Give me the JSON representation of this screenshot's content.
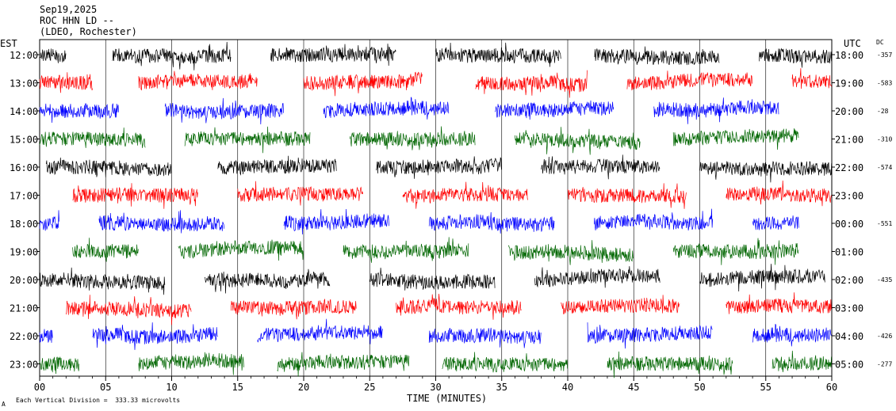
{
  "header": {
    "line1": "Sep19,2025",
    "line2": "ROC HHN LD --",
    "line3": "(LDEO, Rochester)"
  },
  "left_tz": "EST",
  "right_tz": "UTC",
  "dc_label": "DC",
  "xaxis_title": "TIME (MINUTES)",
  "footer_note": "Each Vertical Division =  333.33 microvolts",
  "footer_mark": "A",
  "chart_data": {
    "type": "line",
    "title": "",
    "xlabel": "TIME (MINUTES)",
    "xlim": [
      0,
      60
    ],
    "x_ticks": [
      "00",
      "05",
      "10",
      "15",
      "20",
      "25",
      "30",
      "35",
      "40",
      "45",
      "50",
      "55",
      "60"
    ],
    "grid": "vertical lines every 5 minutes",
    "trace_colors": [
      "#000000",
      "#ff0000",
      "#0000ff",
      "#006600"
    ],
    "rows": [
      {
        "est": "12:00",
        "utc": "18:00",
        "dc": "-357"
      },
      {
        "est": "13:00",
        "utc": "19:00",
        "dc": "-583"
      },
      {
        "est": "14:00",
        "utc": "20:00",
        "dc": "-28"
      },
      {
        "est": "15:00",
        "utc": "21:00",
        "dc": "-310"
      },
      {
        "est": "16:00",
        "utc": "22:00",
        "dc": "-574"
      },
      {
        "est": "17:00",
        "utc": "23:00",
        "dc": ""
      },
      {
        "est": "18:00",
        "utc": "00:00",
        "dc": "-551"
      },
      {
        "est": "19:00",
        "utc": "01:00",
        "dc": ""
      },
      {
        "est": "20:00",
        "utc": "02:00",
        "dc": "-435"
      },
      {
        "est": "21:00",
        "utc": "03:00",
        "dc": ""
      },
      {
        "est": "22:00",
        "utc": "04:00",
        "dc": "-426"
      },
      {
        "est": "23:00",
        "utc": "05:00",
        "dc": "-277"
      }
    ],
    "segments_minutes": [
      [
        [
          0,
          2
        ],
        [
          5.5,
          14.5
        ],
        [
          17.5,
          27
        ],
        [
          30,
          39.5
        ],
        [
          42,
          51.5
        ],
        [
          54.5,
          60
        ]
      ],
      [
        [
          0,
          4
        ],
        [
          7.5,
          16.5
        ],
        [
          20,
          29
        ],
        [
          33,
          41.5
        ],
        [
          44.5,
          54
        ],
        [
          57,
          60
        ]
      ],
      [
        [
          0,
          6
        ],
        [
          9.5,
          18.5
        ],
        [
          21.5,
          31
        ],
        [
          34.5,
          43.5
        ],
        [
          46.5,
          56
        ]
      ],
      [
        [
          0,
          8
        ],
        [
          11,
          20.5
        ],
        [
          23.5,
          33
        ],
        [
          36,
          45.5
        ],
        [
          48,
          57.5
        ]
      ],
      [
        [
          0.5,
          10
        ],
        [
          13.5,
          22.5
        ],
        [
          25.5,
          35
        ],
        [
          38,
          47
        ],
        [
          50,
          60
        ]
      ],
      [
        [
          2.5,
          12
        ],
        [
          15,
          24.5
        ],
        [
          27.5,
          37
        ],
        [
          40,
          49
        ],
        [
          52,
          60
        ]
      ],
      [
        [
          0,
          1.5
        ],
        [
          4.5,
          14
        ],
        [
          18.5,
          26.5
        ],
        [
          29.5,
          39
        ],
        [
          42,
          51
        ],
        [
          54,
          57.5
        ]
      ],
      [
        [
          2.5,
          7.5
        ],
        [
          10.5,
          20
        ],
        [
          23,
          32.5
        ],
        [
          35.5,
          45
        ],
        [
          48,
          57.5
        ]
      ],
      [
        [
          0,
          9.5
        ],
        [
          12.5,
          22
        ],
        [
          25,
          34.5
        ],
        [
          37.5,
          47
        ],
        [
          50,
          59.5
        ]
      ],
      [
        [
          2,
          11.5
        ],
        [
          14.5,
          24
        ],
        [
          27,
          36.5
        ],
        [
          39.5,
          48.5
        ],
        [
          52,
          60
        ]
      ],
      [
        [
          0,
          1
        ],
        [
          4,
          13.5
        ],
        [
          16.5,
          26
        ],
        [
          29.5,
          38
        ],
        [
          41.5,
          51
        ],
        [
          54,
          60
        ]
      ],
      [
        [
          0,
          3
        ],
        [
          7.5,
          15.5
        ],
        [
          18,
          28
        ],
        [
          30.5,
          40
        ],
        [
          43,
          52.5
        ],
        [
          55.5,
          60
        ]
      ]
    ]
  }
}
